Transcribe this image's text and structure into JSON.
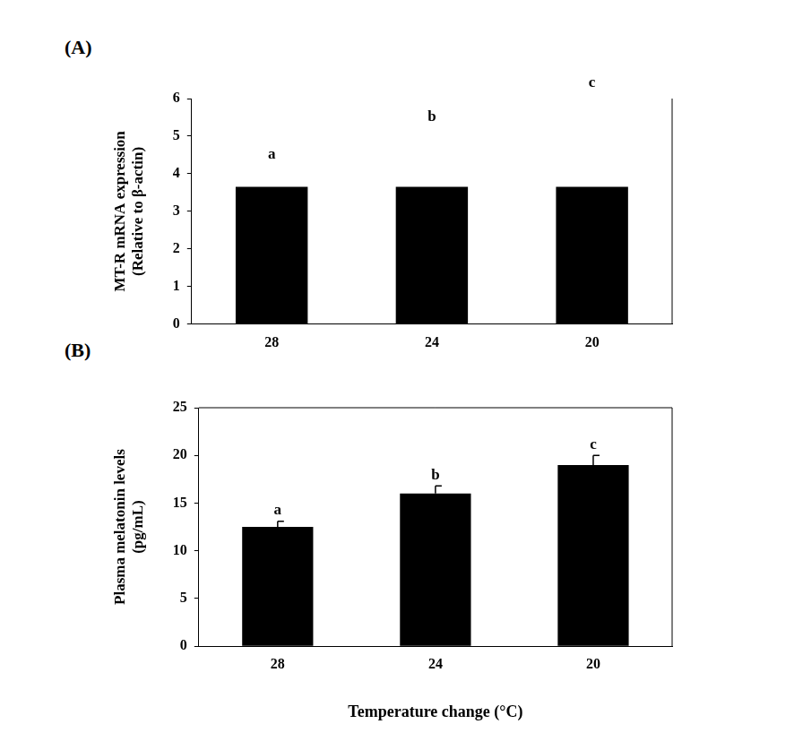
{
  "chart_data": [
    {
      "type": "bar",
      "title": "(A)",
      "ylabel": [
        "MT-R mRNA expression",
        "(Relative to β-actin)"
      ],
      "categories": [
        "28",
        "24",
        "20"
      ],
      "values": [
        3.65,
        3.65,
        3.65
      ],
      "color": "#000000",
      "ylim": [
        0,
        6
      ],
      "yticks": [
        0,
        1,
        2,
        3,
        4,
        5,
        6
      ],
      "grid": false,
      "annotations": [
        {
          "text": "a",
          "x": "28",
          "y": 4.3
        },
        {
          "text": "b",
          "x": "24",
          "y": 5.3
        },
        {
          "text": "c",
          "x": "20",
          "y": 6.2
        }
      ]
    },
    {
      "type": "bar",
      "title": "(B)",
      "ylabel": [
        "Plasma melatonin levels",
        "(pg/mL)"
      ],
      "xlabel": "Temperature change (°C)",
      "categories": [
        "28",
        "24",
        "20"
      ],
      "values": [
        12.5,
        16.0,
        19.0
      ],
      "errors": [
        0.6,
        0.8,
        1.0
      ],
      "color": "#000000",
      "ylim": [
        0,
        25
      ],
      "yticks": [
        0,
        5,
        10,
        15,
        20,
        25
      ],
      "grid": false,
      "annotations": [
        {
          "text": "a",
          "x": "28",
          "y": 13.4
        },
        {
          "text": "b",
          "x": "24",
          "y": 17.1
        },
        {
          "text": "c",
          "x": "20",
          "y": 20.3
        }
      ]
    }
  ]
}
